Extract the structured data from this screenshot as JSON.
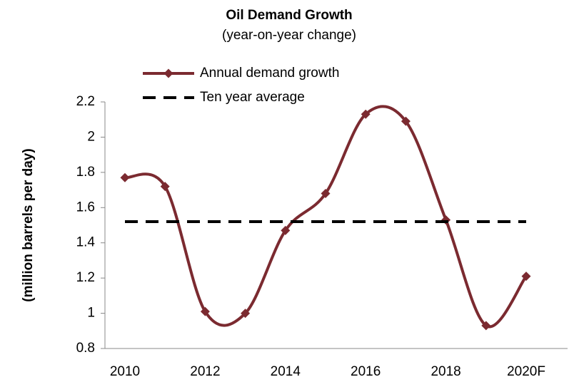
{
  "chart_data": {
    "type": "line",
    "title": "Oil Demand Growth",
    "subtitle": "(year-on-year change)",
    "y_label": "(million barrels per day)",
    "categories": [
      "2010",
      null,
      "2012",
      null,
      "2014",
      null,
      "2016",
      null,
      "2018",
      null,
      "2020F"
    ],
    "series": [
      {
        "name": "Annual demand growth",
        "color": "#7b2a30",
        "smooth": true,
        "marker": "diamond",
        "values": [
          1.77,
          1.72,
          1.01,
          1.0,
          1.47,
          1.68,
          2.13,
          2.09,
          1.53,
          0.93,
          1.21
        ]
      },
      {
        "name": "Ten year average",
        "color": "#000000",
        "dashed": true,
        "values": [
          1.52,
          1.52,
          1.52,
          1.52,
          1.52,
          1.52,
          1.52,
          1.52,
          1.52,
          1.52,
          1.52
        ]
      }
    ],
    "ylim": [
      0.8,
      2.2
    ],
    "yticks": [
      0.8,
      1,
      1.2,
      1.4,
      1.6,
      1.8,
      2,
      2.2
    ],
    "legend": "top"
  }
}
